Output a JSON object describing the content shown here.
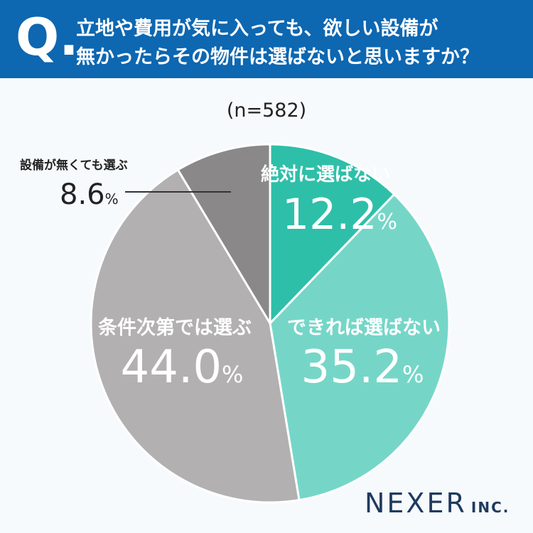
{
  "header": {
    "q_mark": "Q.",
    "line1": "立地や費用が気に入っても、欲しい設備が",
    "line2": "無かったらその物件は選ばないと思いますか？"
  },
  "sample_label": "(n=582)",
  "brand": {
    "name": "NEXER",
    "suffix": "INC."
  },
  "colors": {
    "header_bg": "#0d67b1",
    "slice_never": "#2ebfa9",
    "slice_if_possible": "#75d6c8",
    "slice_conditional": "#b2b0b1",
    "slice_choose_anyway": "#8a8888",
    "leader_line": "#333333"
  },
  "chart_data": {
    "type": "pie",
    "title": "立地や費用が気に入っても、欲しい設備が無かったらその物件は選ばないと思いますか？",
    "sample_size": "n=582",
    "unit": "%",
    "slices": [
      {
        "label": "絶対に選ばない",
        "value": 12.2,
        "value_text": "12.2",
        "color": "#2ebfa9"
      },
      {
        "label": "できれば選ばない",
        "value": 35.2,
        "value_text": "35.2",
        "color": "#75d6c8"
      },
      {
        "label": "条件次第では選ぶ",
        "value": 44.0,
        "value_text": "44.0",
        "color": "#b2b0b1"
      },
      {
        "label": "設備が無くても選ぶ",
        "value": 8.6,
        "value_text": "8.6",
        "color": "#8a8888"
      }
    ]
  }
}
